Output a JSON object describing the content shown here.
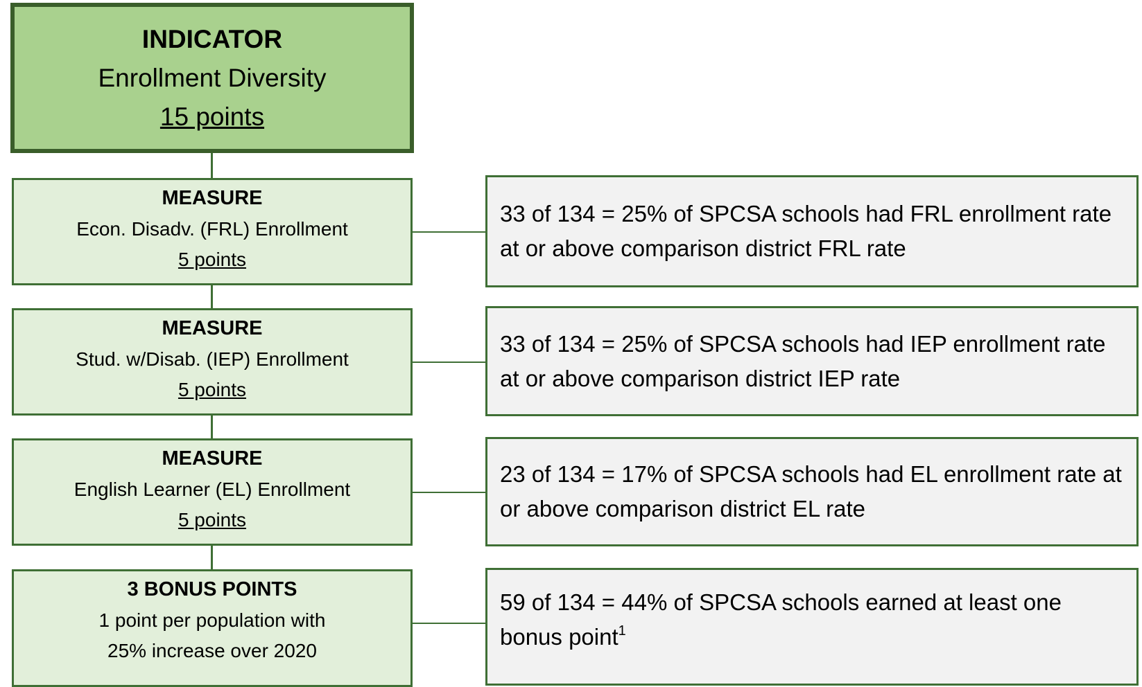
{
  "indicator": {
    "heading": "INDICATOR",
    "name": "Enrollment Diversity",
    "points": "15 points"
  },
  "measures": [
    {
      "heading": "MEASURE",
      "name": "Econ. Disadv. (FRL) Enrollment",
      "points": "5 points"
    },
    {
      "heading": "MEASURE",
      "name": "Stud. w/Disab. (IEP) Enrollment",
      "points": "5 points"
    },
    {
      "heading": "MEASURE",
      "name": "English Learner (EL) Enrollment",
      "points": "5 points"
    },
    {
      "heading": "3 BONUS POINTS",
      "name": "1 point per population with",
      "points": "25% increase over 2020"
    }
  ],
  "results": [
    {
      "text": "33 of 134 = 25% of SPCSA schools had FRL enrollment rate at or above comparison district FRL rate"
    },
    {
      "text": "33 of 134 = 25% of SPCSA schools had IEP enrollment rate at or above comparison district IEP rate"
    },
    {
      "text": "23 of 134 = 17% of SPCSA schools had EL enrollment rate at or above comparison district EL rate"
    },
    {
      "text": "59 of 134 = 44% of SPCSA schools earned at least one bonus point",
      "footnote_mark": "1"
    }
  ]
}
